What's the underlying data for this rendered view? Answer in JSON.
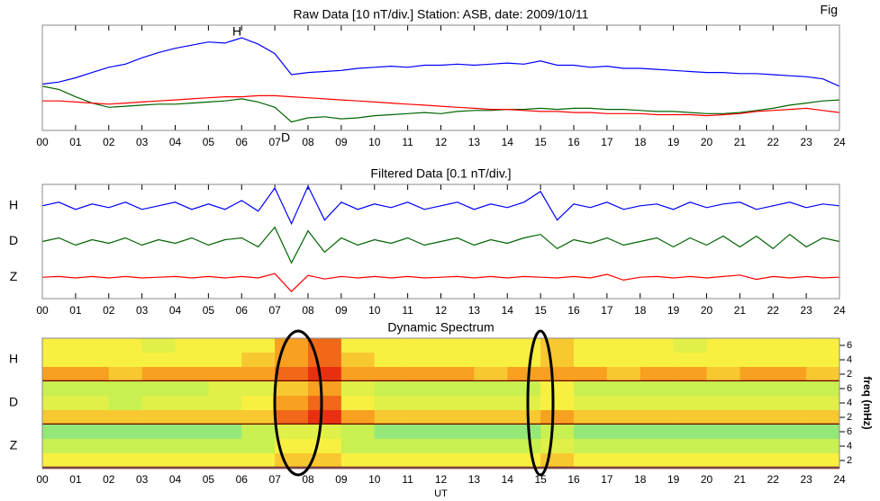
{
  "corner_label": "Fig",
  "chart_data": [
    {
      "type": "line",
      "title": "Raw Data [10 nT/div.] Station: ASB, date: 2009/10/11",
      "annotations": [
        "H",
        "D"
      ],
      "xlim": [
        0,
        24
      ],
      "ylim": [
        0,
        10
      ],
      "xticks": [
        {
          "value": 0,
          "label": "00"
        },
        {
          "value": 1,
          "label": "01"
        },
        {
          "value": 2,
          "label": "02"
        },
        {
          "value": 3,
          "label": "03"
        },
        {
          "value": 4,
          "label": "04"
        },
        {
          "value": 5,
          "label": "05"
        },
        {
          "value": 6,
          "label": "06"
        },
        {
          "value": 7,
          "label": "07"
        },
        {
          "value": 8,
          "label": "08"
        },
        {
          "value": 9,
          "label": "09"
        },
        10,
        11,
        12,
        13,
        14,
        15,
        16,
        17,
        18,
        19,
        20,
        21,
        22,
        23,
        24
      ],
      "x": [
        0,
        0.5,
        1,
        1.5,
        2,
        2.5,
        3,
        3.5,
        4,
        4.5,
        5,
        5.5,
        6,
        6.5,
        7,
        7.5,
        8,
        8.5,
        9,
        9.5,
        10,
        10.5,
        11,
        11.5,
        12,
        12.5,
        13,
        13.5,
        14,
        14.5,
        15,
        15.5,
        16,
        16.5,
        17,
        17.5,
        18,
        18.5,
        19,
        19.5,
        20,
        20.5,
        21,
        21.5,
        22,
        22.5,
        23,
        23.5,
        24
      ],
      "series": [
        {
          "name": "H",
          "color": "#0000ff",
          "values": [
            4.4,
            4.6,
            5.0,
            5.5,
            6.0,
            6.3,
            6.9,
            7.4,
            7.8,
            8.1,
            8.4,
            8.3,
            8.8,
            8.2,
            7.3,
            5.3,
            5.5,
            5.6,
            5.7,
            5.9,
            6.0,
            6.1,
            6.0,
            6.2,
            6.2,
            6.3,
            6.2,
            6.3,
            6.4,
            6.3,
            6.6,
            6.2,
            6.2,
            6.0,
            6.1,
            5.9,
            5.9,
            5.8,
            5.7,
            5.6,
            5.5,
            5.5,
            5.4,
            5.4,
            5.3,
            5.2,
            5.1,
            4.9,
            4.2
          ]
        },
        {
          "name": "D",
          "color": "#006400",
          "values": [
            4.2,
            3.9,
            3.2,
            2.6,
            2.2,
            2.3,
            2.4,
            2.5,
            2.5,
            2.6,
            2.7,
            2.8,
            3.0,
            2.7,
            2.2,
            0.8,
            1.2,
            1.3,
            1.1,
            1.2,
            1.4,
            1.5,
            1.6,
            1.7,
            1.6,
            1.8,
            1.9,
            1.9,
            2.0,
            2.0,
            2.1,
            2.0,
            2.1,
            2.1,
            2.0,
            2.0,
            1.9,
            1.8,
            1.8,
            1.7,
            1.6,
            1.6,
            1.7,
            1.9,
            2.1,
            2.4,
            2.6,
            2.8,
            2.9
          ]
        },
        {
          "name": "Z",
          "color": "#ff0000",
          "values": [
            2.8,
            2.8,
            2.7,
            2.6,
            2.5,
            2.6,
            2.7,
            2.8,
            2.9,
            3.0,
            3.1,
            3.2,
            3.2,
            3.3,
            3.3,
            3.2,
            3.1,
            3.0,
            2.9,
            2.8,
            2.7,
            2.6,
            2.5,
            2.4,
            2.3,
            2.2,
            2.1,
            2.0,
            2.0,
            1.9,
            1.8,
            1.8,
            1.7,
            1.7,
            1.6,
            1.6,
            1.6,
            1.5,
            1.5,
            1.5,
            1.4,
            1.5,
            1.6,
            1.8,
            1.9,
            2.0,
            2.1,
            1.9,
            1.7
          ]
        }
      ]
    },
    {
      "type": "line",
      "title": "Filtered Data [0.1 nT/div.]",
      "series_labels": true,
      "xlim": [
        0,
        24
      ],
      "ylim": [
        0.4,
        3.6
      ],
      "xticks": [
        {
          "value": 0,
          "label": "00"
        },
        {
          "value": 1,
          "label": "01"
        },
        {
          "value": 2,
          "label": "02"
        },
        {
          "value": 3,
          "label": "03"
        },
        {
          "value": 4,
          "label": "04"
        },
        {
          "value": 5,
          "label": "05"
        },
        {
          "value": 6,
          "label": "06"
        },
        {
          "value": 7,
          "label": "07"
        },
        {
          "value": 8,
          "label": "08"
        },
        {
          "value": 9,
          "label": "09"
        },
        10,
        11,
        12,
        13,
        14,
        15,
        16,
        17,
        18,
        19,
        20,
        21,
        22,
        23,
        24
      ],
      "x": [
        0,
        0.5,
        1,
        1.5,
        2,
        2.5,
        3,
        3.5,
        4,
        4.5,
        5,
        5.5,
        6,
        6.5,
        7,
        7.5,
        8,
        8.5,
        9,
        9.5,
        10,
        10.5,
        11,
        11.5,
        12,
        12.5,
        13,
        13.5,
        14,
        14.5,
        15,
        15.5,
        16,
        16.5,
        17,
        17.5,
        18,
        18.5,
        19,
        19.5,
        20,
        20.5,
        21,
        21.5,
        22,
        22.5,
        23,
        23.5,
        24
      ],
      "series": [
        {
          "name": "H",
          "color": "#0000ff",
          "values": [
            3.0,
            3.1,
            2.9,
            3.05,
            2.95,
            3.1,
            2.9,
            3.0,
            3.1,
            2.9,
            3.05,
            2.9,
            3.15,
            2.85,
            3.5,
            2.5,
            3.55,
            2.6,
            3.1,
            2.9,
            3.05,
            2.95,
            3.1,
            2.9,
            3.0,
            3.1,
            2.9,
            3.05,
            2.95,
            3.1,
            3.4,
            2.6,
            3.05,
            2.95,
            3.1,
            2.9,
            3.0,
            3.05,
            2.9,
            3.1,
            2.95,
            3.05,
            3.1,
            2.9,
            3.0,
            3.1,
            2.95,
            3.05,
            3.0
          ]
        },
        {
          "name": "D",
          "color": "#006400",
          "values": [
            2.0,
            2.1,
            1.9,
            2.05,
            1.95,
            2.1,
            1.9,
            2.05,
            1.95,
            2.1,
            1.9,
            2.05,
            2.1,
            1.85,
            2.4,
            1.4,
            2.3,
            1.7,
            2.1,
            1.9,
            2.05,
            1.95,
            2.1,
            1.9,
            2.0,
            2.1,
            1.9,
            2.05,
            1.95,
            2.1,
            2.2,
            1.8,
            2.05,
            1.95,
            2.1,
            1.9,
            2.0,
            2.1,
            1.85,
            2.1,
            1.9,
            2.15,
            1.85,
            2.15,
            1.8,
            2.2,
            1.85,
            2.1,
            2.0
          ]
        },
        {
          "name": "Z",
          "color": "#ff0000",
          "values": [
            1.0,
            1.02,
            0.98,
            1.02,
            0.98,
            1.02,
            0.98,
            1.0,
            1.02,
            0.98,
            1.02,
            0.98,
            1.02,
            0.98,
            1.1,
            0.6,
            1.05,
            0.95,
            1.02,
            0.98,
            1.02,
            0.98,
            1.02,
            0.98,
            1.0,
            1.02,
            0.98,
            1.02,
            0.98,
            1.02,
            1.0,
            0.98,
            1.02,
            0.98,
            1.08,
            0.92,
            1.0,
            1.02,
            0.98,
            1.02,
            0.98,
            1.02,
            1.06,
            0.94,
            1.02,
            0.98,
            1.02,
            0.98,
            1.0
          ]
        }
      ]
    },
    {
      "type": "heatmap",
      "title": "Dynamic Spectrum",
      "xlabel": "UT",
      "y2label": "freq (mHz)",
      "xlim": [
        0,
        24
      ],
      "ylim": [
        1,
        7
      ],
      "yticks": [
        6,
        4,
        2
      ],
      "zlim": [
        0,
        5
      ],
      "colorscale": [
        "#30c8f0",
        "#60e0a0",
        "#c8f050",
        "#f8f040",
        "#f8a020",
        "#e83010"
      ],
      "xticks": [
        {
          "value": 0,
          "label": "00"
        },
        {
          "value": 1,
          "label": "01"
        },
        {
          "value": 2,
          "label": "02"
        },
        {
          "value": 3,
          "label": "03"
        },
        {
          "value": 4,
          "label": "04"
        },
        {
          "value": 5,
          "label": "05"
        },
        {
          "value": 6,
          "label": "06"
        },
        {
          "value": 7,
          "label": "07"
        },
        {
          "value": 8,
          "label": "08"
        },
        {
          "value": 9,
          "label": "09"
        },
        10,
        11,
        12,
        13,
        14,
        15,
        16,
        17,
        18,
        19,
        20,
        21,
        22,
        23,
        24
      ],
      "x": [
        0,
        1,
        2,
        3,
        4,
        5,
        6,
        7,
        8,
        9,
        10,
        11,
        12,
        13,
        14,
        15,
        16,
        17,
        18,
        19,
        20,
        21,
        22,
        23,
        24
      ],
      "series": [
        {
          "name": "H",
          "values": [
            [
              3,
              3,
              3,
              2.5,
              3,
              3,
              3,
              4,
              4.5,
              3,
              3,
              3,
              3,
              3,
              3,
              3.5,
              3,
              3,
              3,
              2.5,
              3,
              3,
              3,
              3
            ],
            [
              3,
              3,
              3,
              3,
              3,
              3,
              3.5,
              4,
              4.5,
              3.5,
              3,
              3,
              3,
              3,
              3,
              3.5,
              3,
              3,
              3,
              3,
              3,
              3,
              3,
              3
            ],
            [
              4,
              4,
              3.5,
              4,
              4,
              4,
              4,
              4.5,
              5,
              4,
              4,
              4,
              4,
              3.5,
              4,
              4,
              4,
              3.5,
              4,
              4,
              3.5,
              4,
              4,
              3.5
            ]
          ]
        },
        {
          "name": "D",
          "values": [
            [
              2,
              2,
              2,
              2,
              2,
              2.5,
              2.5,
              3.5,
              4,
              2.5,
              2,
              2,
              2,
              2,
              2,
              3,
              2,
              2,
              2,
              2,
              2,
              2,
              2,
              2
            ],
            [
              2.5,
              2.5,
              2,
              2.5,
              2.5,
              2.5,
              3,
              4,
              4.5,
              3,
              2.5,
              2.5,
              2.5,
              2.5,
              2.5,
              3,
              2.5,
              2.5,
              2.5,
              2.5,
              2.5,
              2.5,
              2.5,
              2.5
            ],
            [
              3.5,
              3.5,
              3.5,
              3.5,
              3.5,
              3.5,
              3.5,
              4.5,
              5,
              4,
              3.5,
              3.5,
              3.5,
              3.5,
              3.5,
              4,
              3.5,
              3.5,
              3.5,
              3.5,
              3.5,
              3.5,
              3.5,
              3.5
            ]
          ]
        },
        {
          "name": "Z",
          "values": [
            [
              1.5,
              1.5,
              1.5,
              1.5,
              1.5,
              1.5,
              2,
              2.5,
              2.5,
              2,
              1.5,
              1.5,
              1.5,
              1.5,
              1.5,
              2,
              1.5,
              1.5,
              1.5,
              1.5,
              1.5,
              1.5,
              1.5,
              1.5
            ],
            [
              2,
              2,
              2,
              2,
              2,
              2,
              2,
              3,
              3,
              2,
              2,
              2,
              2,
              2,
              2,
              2.5,
              2,
              2,
              2,
              2,
              2,
              2,
              2,
              2
            ],
            [
              3,
              3,
              3,
              3,
              3,
              3,
              3,
              3.5,
              3.5,
              3,
              3,
              3,
              3,
              3,
              3,
              3.5,
              3,
              3,
              3,
              3,
              3,
              3,
              3,
              3
            ]
          ]
        }
      ]
    }
  ]
}
